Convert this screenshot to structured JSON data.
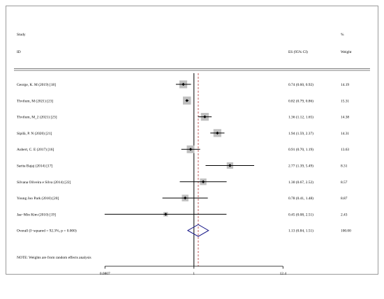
{
  "header": {
    "study_label": "Study",
    "id_label": "ID",
    "es_label": "ES (95% CI)",
    "pct_label": "%",
    "weight_label": "Weight"
  },
  "note": "NOTE: Weights are from random effects analysis",
  "chart_data": {
    "type": "forest",
    "scale": "log",
    "x_ticks": [
      {
        "value": 0.0807,
        "label": "0.0807"
      },
      {
        "value": 1,
        "label": "1"
      },
      {
        "value": 12.4,
        "label": "12.4"
      }
    ],
    "xlim": [
      0.0807,
      12.4
    ],
    "null_line": 1,
    "overall_line": 1.13,
    "studies": [
      {
        "id": "George, K. M (2019) [18]",
        "es": 0.74,
        "lo": 0.6,
        "hi": 0.92,
        "es_text": "0.74 (0.60, 0.92)",
        "weight": 14.19,
        "weight_text": "14.19"
      },
      {
        "id": "Thvilum, M (2021) [23]",
        "es": 0.82,
        "lo": 0.79,
        "hi": 0.86,
        "es_text": "0.82 (0.79, 0.86)",
        "weight": 15.31,
        "weight_text": "15.31"
      },
      {
        "id": "Thvilum, M_2 (2021) [23]",
        "es": 1.36,
        "lo": 1.12,
        "hi": 1.65,
        "es_text": "1.36 (1.12, 1.65)",
        "weight": 14.38,
        "weight_text": "14.38"
      },
      {
        "id": "Sipilä, P. N (2020) [21]",
        "es": 1.94,
        "lo": 1.59,
        "hi": 2.37,
        "es_text": "1.94 (1.59, 2.37)",
        "weight": 14.31,
        "weight_text": "14.31"
      },
      {
        "id": "Aubert, C. E (2017) [16]",
        "es": 0.91,
        "lo": 0.7,
        "hi": 1.19,
        "es_text": "0.91 (0.70, 1.19)",
        "weight": 13.63,
        "weight_text": "13.63"
      },
      {
        "id": "Sarita Bajaj (2014) [17]",
        "es": 2.77,
        "lo": 1.39,
        "hi": 5.49,
        "es_text": "2.77 (1.39, 5.49)",
        "weight": 8.31,
        "weight_text": "8.31"
      },
      {
        "id": "Silvana Oliveira e Silva (2014) [22]",
        "es": 1.3,
        "lo": 0.67,
        "hi": 2.52,
        "es_text": "1.30 (0.67, 2.52)",
        "weight": 8.57,
        "weight_text": "8.57"
      },
      {
        "id": "Young Joo Park (2010) [20]",
        "es": 0.78,
        "lo": 0.41,
        "hi": 1.48,
        "es_text": "0.78 (0.41, 1.48)",
        "weight": 8.87,
        "weight_text": "8.87"
      },
      {
        "id": "Jae−Min Kim (2010) [19]",
        "es": 0.45,
        "lo": 0.08,
        "hi": 2.51,
        "es_text": "0.45 (0.08, 2.51)",
        "weight": 2.43,
        "weight_text": "2.43"
      }
    ],
    "overall": {
      "id": "Overall  (I−squared = 92.3%, p = 0.000)",
      "es": 1.13,
      "lo": 0.84,
      "hi": 1.51,
      "es_text": "1.13 (0.84, 1.51)",
      "weight_text": "100.00"
    },
    "colors": {
      "box": "#c0c0c0",
      "line": "#000000",
      "overall_line": "#c0504d",
      "diamond": "#1f1f8c"
    }
  }
}
